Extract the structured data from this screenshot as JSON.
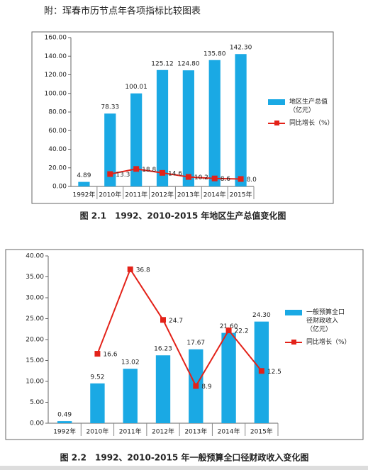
{
  "header": {
    "title": "附：珲春市历节点年各项指标比较图表"
  },
  "chart_data": [
    {
      "type": "bar",
      "title": "图 2.1　1992、2010-2015 年地区生产总值变化图",
      "categories": [
        "1992年",
        "2010年",
        "2011年",
        "2012年",
        "2013年",
        "2014年",
        "2015年"
      ],
      "series": [
        {
          "name": "地区生产总值（亿元）",
          "color": "#1aa9e4",
          "type": "bar",
          "values": [
            4.89,
            78.33,
            100.01,
            125.12,
            124.8,
            135.8,
            142.3
          ],
          "value_labels": [
            "4.89",
            "78.33",
            "100.01",
            "125.12",
            "124.80",
            "135.80",
            "142.30"
          ]
        },
        {
          "name": "同比增长（%）",
          "color": "#e32219",
          "type": "line",
          "values": [
            null,
            13.3,
            18.8,
            14.6,
            10.2,
            8.6,
            8.0
          ],
          "value_labels": [
            null,
            "13.3",
            "18.8",
            "14.6",
            "10.2",
            "8.6",
            "8.0"
          ]
        }
      ],
      "ylim": [
        0,
        160
      ],
      "yticks": [
        {
          "value": 0,
          "label": "0.00"
        },
        {
          "value": 20,
          "label": "20.00"
        },
        {
          "value": 40,
          "label": "40.00"
        },
        {
          "value": 60,
          "label": "60.00"
        },
        {
          "value": 80,
          "label": "80.00"
        },
        {
          "value": 100,
          "label": "100.00"
        },
        {
          "value": 120,
          "label": "120.00"
        },
        {
          "value": 140,
          "label": "140.00"
        },
        {
          "value": 160,
          "label": "160.00"
        }
      ]
    },
    {
      "type": "bar",
      "title": "图 2.2　1992、2010-2015 年一般预算全口径财政收入变化图",
      "categories": [
        "1992年",
        "2010年",
        "2011年",
        "2012年",
        "2013年",
        "2014年",
        "2015年"
      ],
      "series": [
        {
          "name": "一般预算全口径财政收入（亿元）",
          "color": "#1aa9e4",
          "type": "bar",
          "values": [
            0.49,
            9.52,
            13.02,
            16.23,
            17.67,
            21.6,
            24.3
          ],
          "value_labels": [
            "0.49",
            "9.52",
            "13.02",
            "16.23",
            "17.67",
            "21.60",
            "24.30"
          ]
        },
        {
          "name": "同比增长（%）",
          "color": "#e32219",
          "type": "line",
          "values": [
            null,
            16.6,
            36.8,
            24.7,
            8.9,
            22.2,
            12.5
          ]
        }
      ],
      "ylim": [
        0,
        40
      ],
      "yticks": [
        {
          "value": 0,
          "label": "0.00"
        },
        {
          "value": 5,
          "label": "5.00"
        },
        {
          "value": 10,
          "label": "10.00"
        },
        {
          "value": 15,
          "label": "15.00"
        },
        {
          "value": 20,
          "label": "20.00"
        },
        {
          "value": 25,
          "label": "25.00"
        },
        {
          "value": 30,
          "label": "30.00"
        },
        {
          "value": 35,
          "label": "35.00"
        },
        {
          "value": 40,
          "label": "40.00"
        }
      ]
    }
  ]
}
